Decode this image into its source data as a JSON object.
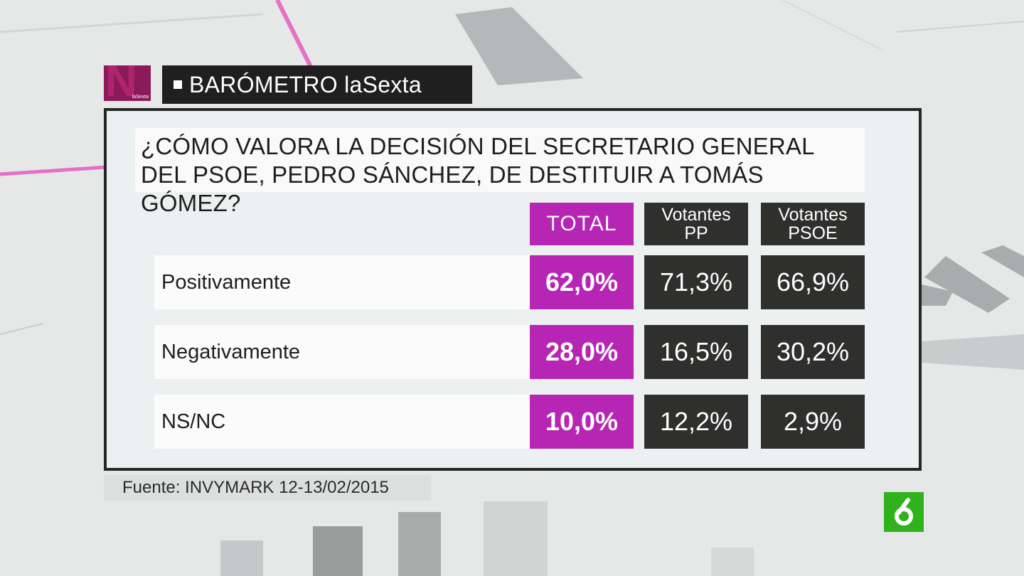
{
  "program_logo": {
    "letter": "N",
    "small_text": "laSexta"
  },
  "header": {
    "title": "BARÓMETRO laSexta"
  },
  "question": "¿CÓMO VALORA LA DECISIÓN DEL SECRETARIO GENERAL DEL PSOE, PEDRO SÁNCHEZ, DE DESTITUIR A TOMÁS GÓMEZ?",
  "columns": {
    "total": "TOTAL",
    "pp": "Votantes\nPP",
    "psoe": "Votantes\nPSOE"
  },
  "rows": [
    {
      "label": "Positivamente",
      "total": "62,0%",
      "pp": "71,3%",
      "psoe": "66,9%"
    },
    {
      "label": "Negativamente",
      "total": "28,0%",
      "pp": "16,5%",
      "psoe": "30,2%"
    },
    {
      "label": "NS/NC",
      "total": "10,0%",
      "pp": "12,2%",
      "psoe": "2,9%"
    }
  ],
  "source": "Fuente: INVYMARK 12-13/02/2015",
  "channel_logo": "la-sexta-6-icon",
  "colors": {
    "accent": "#b625b3",
    "dark": "#2f2f2e",
    "channel_green": "#2fb21c",
    "logo_magenta": "#8a1a5a"
  }
}
